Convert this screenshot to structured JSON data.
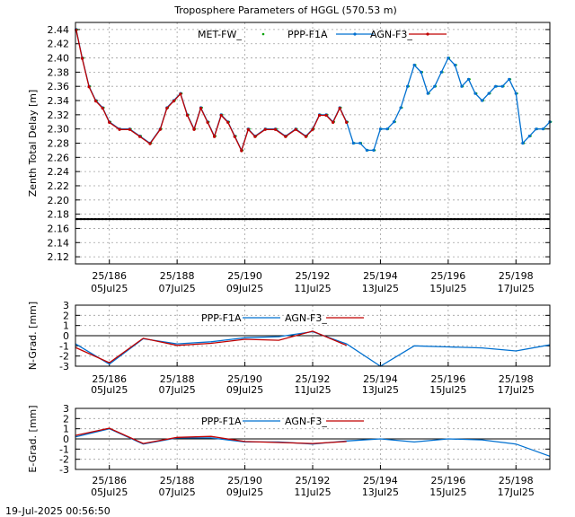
{
  "title": "Troposphere Parameters of HGGL (570.53 m)",
  "timestamp": "19-Jul-2025 00:56:50",
  "colors": {
    "met": "#00a000",
    "ppp": "#0070d0",
    "agn": "#c00000",
    "ref": "#000000",
    "grid": "#a0a0a0"
  },
  "x_ticks": [
    {
      "day": 186,
      "doy": "25/186",
      "date": "05Jul25"
    },
    {
      "day": 188,
      "doy": "25/188",
      "date": "07Jul25"
    },
    {
      "day": 190,
      "doy": "25/190",
      "date": "09Jul25"
    },
    {
      "day": 192,
      "doy": "25/192",
      "date": "11Jul25"
    },
    {
      "day": 194,
      "doy": "25/194",
      "date": "13Jul25"
    },
    {
      "day": 196,
      "doy": "25/196",
      "date": "15Jul25"
    },
    {
      "day": 198,
      "doy": "25/198",
      "date": "17Jul25"
    }
  ],
  "chart_data": [
    {
      "id": "ztd",
      "type": "line",
      "ylabel": "Zenth Total Delay [m]",
      "xlim": [
        185.0,
        199.0
      ],
      "ylim": [
        2.11,
        2.45
      ],
      "y_ticks": [
        "2.12",
        "2.14",
        "2.16",
        "2.18",
        "2.20",
        "2.22",
        "2.24",
        "2.26",
        "2.28",
        "2.30",
        "2.32",
        "2.34",
        "2.36",
        "2.38",
        "2.40",
        "2.42",
        "2.44"
      ],
      "series": [
        {
          "name": "MET-FW_",
          "key": "met",
          "style": "points",
          "x": [
            185.02,
            185.2,
            185.4,
            185.6,
            185.8,
            186.0,
            186.3,
            186.6,
            186.9,
            187.2,
            187.5,
            187.7,
            187.9,
            188.1,
            188.3,
            188.5,
            188.7,
            188.9,
            189.1,
            189.3,
            189.5,
            189.7,
            189.9,
            190.1,
            190.3,
            190.6,
            190.9,
            191.2,
            191.5,
            191.8,
            192.0,
            192.2,
            192.4,
            192.6,
            192.8,
            193.0,
            193.2,
            193.4,
            193.6,
            193.8,
            194.0,
            194.2,
            194.4,
            194.6,
            194.8,
            195.0,
            195.2,
            195.4,
            195.6,
            195.8,
            196.0,
            196.2,
            196.4,
            196.6,
            196.8,
            197.0,
            197.2,
            197.4,
            197.6,
            197.8,
            198.0,
            198.2,
            198.4,
            198.6,
            198.8,
            199.0
          ],
          "y": [
            2.44,
            2.4,
            2.36,
            2.34,
            2.33,
            2.31,
            2.3,
            2.3,
            2.29,
            2.28,
            2.3,
            2.33,
            2.34,
            2.35,
            2.32,
            2.3,
            2.33,
            2.31,
            2.29,
            2.32,
            2.31,
            2.29,
            2.27,
            2.3,
            2.29,
            2.3,
            2.3,
            2.29,
            2.3,
            2.29,
            2.3,
            2.32,
            2.32,
            2.31,
            2.33,
            2.31,
            2.28,
            2.28,
            2.27,
            2.27,
            2.3,
            2.3,
            2.31,
            2.33,
            2.36,
            2.39,
            2.38,
            2.35,
            2.36,
            2.38,
            2.4,
            2.39,
            2.36,
            2.37,
            2.35,
            2.34,
            2.35,
            2.36,
            2.36,
            2.37,
            2.35,
            2.28,
            2.29,
            2.3,
            2.3,
            2.31
          ]
        },
        {
          "name": "PPP-F1A",
          "key": "ppp",
          "style": "linepoints",
          "x": [
            185.02,
            185.2,
            185.4,
            185.6,
            185.8,
            186.0,
            186.3,
            186.6,
            186.9,
            187.2,
            187.5,
            187.7,
            187.9,
            188.1,
            188.3,
            188.5,
            188.7,
            188.9,
            189.1,
            189.3,
            189.5,
            189.7,
            189.9,
            190.1,
            190.3,
            190.6,
            190.9,
            191.2,
            191.5,
            191.8,
            192.0,
            192.2,
            192.4,
            192.6,
            192.8,
            193.0,
            193.2,
            193.4,
            193.6,
            193.8,
            194.0,
            194.2,
            194.4,
            194.6,
            194.8,
            195.0,
            195.2,
            195.4,
            195.6,
            195.8,
            196.0,
            196.2,
            196.4,
            196.6,
            196.8,
            197.0,
            197.2,
            197.4,
            197.6,
            197.8,
            198.0,
            198.2,
            198.4,
            198.6,
            198.8,
            199.0
          ],
          "y": [
            2.44,
            2.4,
            2.36,
            2.34,
            2.33,
            2.31,
            2.3,
            2.3,
            2.29,
            2.28,
            2.3,
            2.33,
            2.34,
            2.35,
            2.32,
            2.3,
            2.33,
            2.31,
            2.29,
            2.32,
            2.31,
            2.29,
            2.27,
            2.3,
            2.29,
            2.3,
            2.3,
            2.29,
            2.3,
            2.29,
            2.3,
            2.32,
            2.32,
            2.31,
            2.33,
            2.31,
            2.28,
            2.28,
            2.27,
            2.27,
            2.3,
            2.3,
            2.31,
            2.33,
            2.36,
            2.39,
            2.38,
            2.35,
            2.36,
            2.38,
            2.4,
            2.39,
            2.36,
            2.37,
            2.35,
            2.34,
            2.35,
            2.36,
            2.36,
            2.37,
            2.35,
            2.28,
            2.29,
            2.3,
            2.3,
            2.31
          ]
        },
        {
          "name": "AGN-F3_",
          "key": "agn",
          "style": "linepoints",
          "x": [
            185.02,
            185.2,
            185.4,
            185.6,
            185.8,
            186.0,
            186.3,
            186.6,
            186.9,
            187.2,
            187.5,
            187.7,
            187.9,
            188.1,
            188.3,
            188.5,
            188.7,
            188.9,
            189.1,
            189.3,
            189.5,
            189.7,
            189.9,
            190.1,
            190.3,
            190.6,
            190.9,
            191.2,
            191.5,
            191.8,
            192.0,
            192.2,
            192.4,
            192.6,
            192.8,
            193.0
          ],
          "y": [
            2.44,
            2.4,
            2.36,
            2.34,
            2.33,
            2.31,
            2.3,
            2.3,
            2.29,
            2.28,
            2.3,
            2.33,
            2.34,
            2.35,
            2.32,
            2.3,
            2.33,
            2.31,
            2.29,
            2.32,
            2.31,
            2.29,
            2.27,
            2.3,
            2.29,
            2.3,
            2.3,
            2.29,
            2.3,
            2.29,
            2.3,
            2.32,
            2.32,
            2.31,
            2.33,
            2.31
          ]
        },
        {
          "name": "",
          "key": "ref",
          "style": "hline",
          "value": 2.173
        }
      ]
    },
    {
      "id": "ngrad",
      "type": "line",
      "ylabel": "N-Grad. [mm]",
      "xlim": [
        185.0,
        199.0
      ],
      "ylim": [
        -3,
        3
      ],
      "y_ticks": [
        "-3",
        "-2",
        "-1",
        "0",
        "1",
        "2",
        "3"
      ],
      "series": [
        {
          "name": "PPP-F1A",
          "key": "ppp",
          "style": "line",
          "x": [
            185.0,
            186.0,
            187.0,
            188.0,
            189.0,
            190.0,
            191.0,
            192.0,
            193.0,
            194.0,
            195.0,
            196.0,
            197.0,
            198.0,
            199.0
          ],
          "y": [
            -0.8,
            -2.8,
            -0.3,
            -0.8,
            -0.6,
            -0.2,
            -0.1,
            0.4,
            -0.8,
            -3.0,
            -1.0,
            -1.1,
            -1.2,
            -1.5,
            -0.9
          ]
        },
        {
          "name": "AGN-F3_",
          "key": "agn",
          "style": "line",
          "x": [
            185.0,
            186.0,
            187.0,
            188.0,
            189.0,
            190.0,
            191.0,
            192.0,
            193.0
          ],
          "y": [
            -1.1,
            -2.6,
            -0.2,
            -0.9,
            -0.7,
            -0.3,
            -0.4,
            0.5,
            -0.9
          ]
        }
      ]
    },
    {
      "id": "egrad",
      "type": "line",
      "ylabel": "E-Grad. [mm]",
      "xlim": [
        185.0,
        199.0
      ],
      "ylim": [
        -3,
        3
      ],
      "y_ticks": [
        "-3",
        "-2",
        "-1",
        "0",
        "1",
        "2",
        "3"
      ],
      "series": [
        {
          "name": "PPP-F1A",
          "key": "ppp",
          "style": "line",
          "x": [
            185.0,
            186.0,
            187.0,
            188.0,
            189.0,
            190.0,
            191.0,
            192.0,
            193.0,
            194.0,
            195.0,
            196.0,
            197.0,
            198.0,
            199.0
          ],
          "y": [
            0.2,
            1.0,
            -0.5,
            0.1,
            0.1,
            -0.3,
            -0.3,
            -0.5,
            -0.2,
            0.0,
            -0.3,
            0.0,
            -0.1,
            -0.5,
            -1.7
          ]
        },
        {
          "name": "AGN-F3_",
          "key": "agn",
          "style": "line",
          "x": [
            185.0,
            186.0,
            187.0,
            188.0,
            189.0,
            190.0,
            191.0,
            192.0,
            193.0
          ],
          "y": [
            0.4,
            1.1,
            -0.4,
            0.2,
            0.3,
            -0.2,
            -0.3,
            -0.4,
            -0.2
          ]
        }
      ]
    }
  ]
}
